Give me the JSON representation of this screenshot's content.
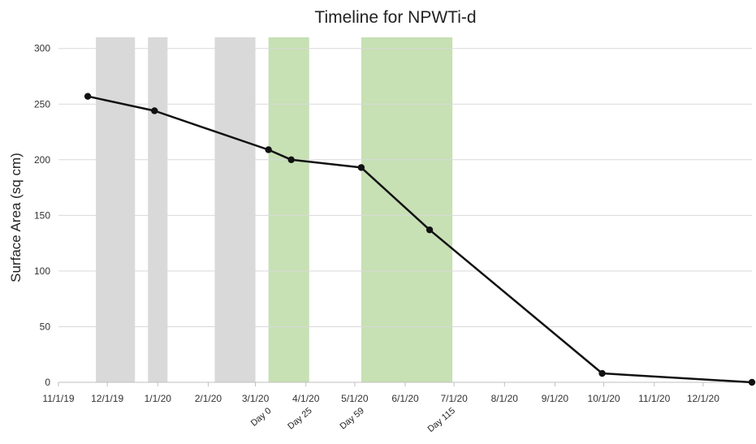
{
  "chart_data": {
    "type": "line",
    "title": "Timeline for NPWTi-d",
    "xlabel": "",
    "ylabel": "Surface Area (sq cm)",
    "x_axis": {
      "type": "date",
      "range": [
        "2019-11-01",
        "2020-12-31"
      ],
      "ticks": [
        {
          "date": "2019-11-01",
          "label": "11/1/19"
        },
        {
          "date": "2019-12-01",
          "label": "12/1/19"
        },
        {
          "date": "2020-01-01",
          "label": "1/1/20"
        },
        {
          "date": "2020-02-01",
          "label": "2/1/20"
        },
        {
          "date": "2020-03-01",
          "label": "3/1/20"
        },
        {
          "date": "2020-04-01",
          "label": "4/1/20"
        },
        {
          "date": "2020-05-01",
          "label": "5/1/20"
        },
        {
          "date": "2020-06-01",
          "label": "6/1/20"
        },
        {
          "date": "2020-07-01",
          "label": "7/1/20"
        },
        {
          "date": "2020-08-01",
          "label": "8/1/20"
        },
        {
          "date": "2020-09-01",
          "label": "9/1/20"
        },
        {
          "date": "2020-10-01",
          "label": "10/1/20"
        },
        {
          "date": "2020-11-01",
          "label": "11/1/20"
        },
        {
          "date": "2020-12-01",
          "label": "12/1/20"
        }
      ]
    },
    "y_axis": {
      "range": [
        0,
        310
      ],
      "ticks": [
        0,
        50,
        100,
        150,
        200,
        250,
        300
      ],
      "grid": true
    },
    "series": [
      {
        "color": "#111111",
        "points": [
          {
            "x": "2019-11-19",
            "y": 257
          },
          {
            "x": "2019-12-30",
            "y": 244
          },
          {
            "x": "2020-03-09",
            "y": 209
          },
          {
            "x": "2020-03-23",
            "y": 200
          },
          {
            "x": "2020-05-05",
            "y": 193
          },
          {
            "x": "2020-06-16",
            "y": 137
          },
          {
            "x": "2020-09-30",
            "y": 8
          },
          {
            "x": "2020-12-31",
            "y": 0
          }
        ]
      }
    ],
    "shaded_periods": [
      {
        "start": "2019-11-24",
        "end": "2019-12-18",
        "color": "#d9d9d9"
      },
      {
        "start": "2019-12-26",
        "end": "2020-01-07",
        "color": "#d9d9d9"
      },
      {
        "start": "2020-02-05",
        "end": "2020-03-01",
        "color": "#d9d9d9"
      },
      {
        "start": "2020-03-09",
        "end": "2020-04-03",
        "color": "#c7e0b4"
      },
      {
        "start": "2020-05-05",
        "end": "2020-06-30",
        "color": "#c7e0b4"
      }
    ],
    "annotations": [
      {
        "x": "2020-03-09",
        "label": "Day 0"
      },
      {
        "x": "2020-04-03",
        "label": "Day 25"
      },
      {
        "x": "2020-05-05",
        "label": "Day 59"
      },
      {
        "x": "2020-06-30",
        "label": "Day 115"
      }
    ]
  }
}
